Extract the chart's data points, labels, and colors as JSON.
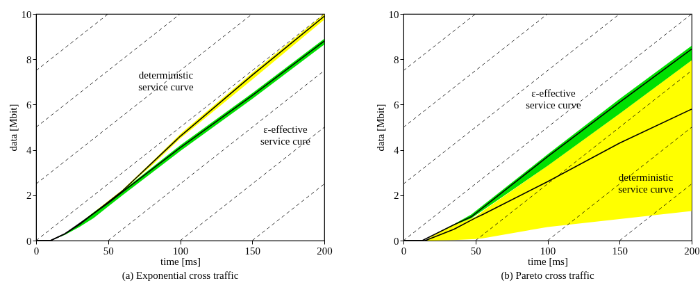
{
  "chart_data": [
    {
      "type": "line",
      "title": "(a)  Exponential cross traffic",
      "xlabel": "time [ms]",
      "ylabel": "data [Mbit]",
      "xlim": [
        0,
        200
      ],
      "xticks": [
        0,
        50,
        100,
        150,
        200
      ],
      "ylim": [
        0,
        10
      ],
      "yticks": [
        0,
        2,
        4,
        6,
        8,
        10
      ],
      "grid": false,
      "annotations": [
        "deterministic\nservice curve",
        "ε-effective\nservice cure"
      ],
      "series": [
        {
          "line_style": "dashed",
          "color": "#000000",
          "x": [
            0,
            50
          ],
          "values": [
            7.5,
            10
          ]
        },
        {
          "line_style": "dashed",
          "color": "#000000",
          "x": [
            0,
            100
          ],
          "values": [
            5,
            10
          ]
        },
        {
          "line_style": "dashed",
          "color": "#000000",
          "x": [
            0,
            150
          ],
          "values": [
            2.5,
            10
          ]
        },
        {
          "line_style": "dashed",
          "color": "#000000",
          "x": [
            0,
            200
          ],
          "values": [
            0,
            10
          ]
        },
        {
          "line_style": "dashed",
          "color": "#000000",
          "x": [
            50,
            200
          ],
          "values": [
            0,
            7.5
          ]
        },
        {
          "line_style": "dashed",
          "color": "#000000",
          "x": [
            100,
            200
          ],
          "values": [
            0,
            5
          ]
        },
        {
          "line_style": "dashed",
          "color": "#000000",
          "x": [
            150,
            200
          ],
          "values": [
            0,
            2.5
          ]
        },
        {
          "line_style": "solid",
          "color": "#000000",
          "x": [
            0,
            10,
            20,
            30,
            40,
            50,
            60,
            70,
            80,
            100,
            150,
            200
          ],
          "values": [
            0,
            0,
            0.3,
            0.75,
            1.2,
            1.7,
            2.2,
            2.8,
            3.4,
            4.6,
            7.3,
            9.9
          ],
          "lower": [
            0,
            0,
            0.3,
            0.7,
            1.15,
            1.65,
            2.15,
            2.75,
            3.3,
            4.5,
            7.1,
            9.75
          ],
          "upper": [
            0,
            0,
            0.3,
            0.75,
            1.25,
            1.75,
            2.25,
            2.85,
            3.45,
            4.7,
            7.4,
            10
          ]
        },
        {
          "line_style": "solid",
          "color": "#000000",
          "x": [
            0,
            10,
            20,
            30,
            40,
            50,
            60,
            100,
            150,
            200
          ],
          "values": [
            0,
            0,
            0.3,
            0.7,
            1.2,
            1.65,
            2.15,
            4.1,
            6.4,
            8.8
          ],
          "lower": [
            0,
            0,
            0.25,
            0.6,
            1.0,
            1.5,
            2.0,
            3.95,
            6.25,
            8.65
          ],
          "upper": [
            0,
            0,
            0.3,
            0.75,
            1.25,
            1.7,
            2.2,
            4.2,
            6.5,
            8.9
          ]
        }
      ]
    },
    {
      "type": "line",
      "title": "(b)  Pareto cross traffic",
      "xlabel": "time [ms]",
      "ylabel": "data [Mbit]",
      "xlim": [
        0,
        200
      ],
      "xticks": [
        0,
        50,
        100,
        150,
        200
      ],
      "ylim": [
        0,
        10
      ],
      "yticks": [
        0,
        2,
        4,
        6,
        8,
        10
      ],
      "grid": false,
      "annotations": [
        "ε-effective\nservice curve",
        "deterministic\nservice curve"
      ],
      "series": [
        {
          "line_style": "dashed",
          "color": "#000000",
          "x": [
            0,
            50
          ],
          "values": [
            7.5,
            10
          ]
        },
        {
          "line_style": "dashed",
          "color": "#000000",
          "x": [
            0,
            100
          ],
          "values": [
            5,
            10
          ]
        },
        {
          "line_style": "dashed",
          "color": "#000000",
          "x": [
            0,
            150
          ],
          "values": [
            2.5,
            10
          ]
        },
        {
          "line_style": "dashed",
          "color": "#000000",
          "x": [
            0,
            200
          ],
          "values": [
            0,
            10
          ]
        },
        {
          "line_style": "dashed",
          "color": "#000000",
          "x": [
            50,
            200
          ],
          "values": [
            0,
            7.5
          ]
        },
        {
          "line_style": "dashed",
          "color": "#000000",
          "x": [
            100,
            200
          ],
          "values": [
            0,
            5
          ]
        },
        {
          "line_style": "dashed",
          "color": "#000000",
          "x": [
            150,
            200
          ],
          "values": [
            0,
            2.5
          ]
        },
        {
          "line_style": "solid",
          "color": "#000000",
          "x": [
            0,
            15,
            20,
            35,
            50,
            55,
            100,
            150,
            200
          ],
          "values": [
            0,
            0,
            0.12,
            0.5,
            1.0,
            1.15,
            2.6,
            4.3,
            5.8
          ],
          "lower": [
            0,
            0,
            0,
            0.02,
            0.07,
            0.1,
            0.6,
            0.95,
            1.3
          ],
          "upper": [
            0,
            0,
            0.2,
            0.7,
            1.05,
            1.3,
            3.3,
            5.6,
            7.95
          ]
        },
        {
          "line_style": "solid",
          "color": "#000000",
          "x": [
            0,
            13,
            35,
            47,
            100,
            150,
            200
          ],
          "values": [
            0,
            0,
            0.7,
            1.05,
            3.7,
            6.1,
            8.45
          ],
          "lower": [
            0,
            0,
            0.68,
            0.98,
            3.3,
            5.6,
            7.95
          ],
          "upper": [
            0,
            0,
            0.72,
            1.15,
            3.8,
            6.25,
            8.6
          ]
        }
      ]
    }
  ]
}
